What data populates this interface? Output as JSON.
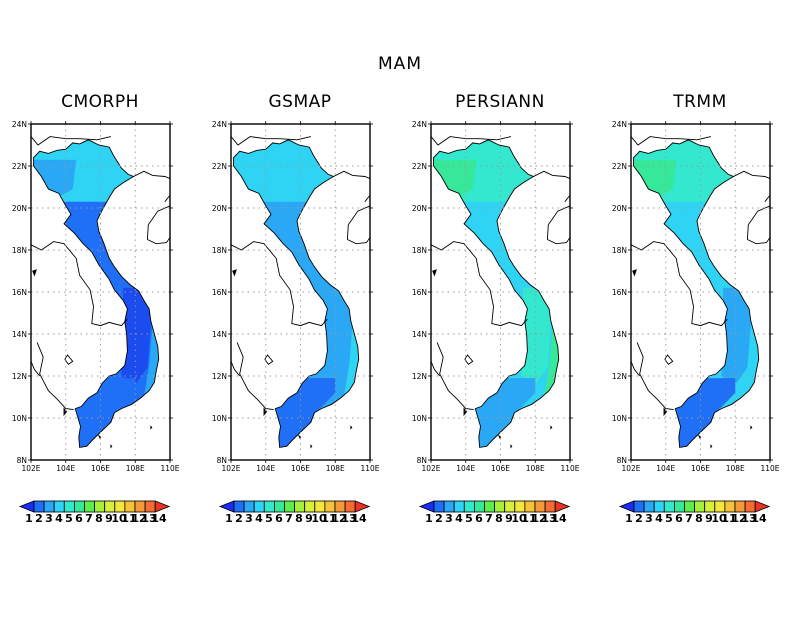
{
  "figure": {
    "title": "MAM"
  },
  "colors": {
    "scale": [
      "#1a2cf5",
      "#1f6ff7",
      "#2aa8f5",
      "#2fd4f4",
      "#33e8cf",
      "#36e89a",
      "#5cee4c",
      "#a8ef3a",
      "#d9f03a",
      "#f2e73a",
      "#f5c23a",
      "#f49a38",
      "#f26b30",
      "#ea3424"
    ],
    "land_outline": "#000000",
    "grid": "#999999"
  },
  "axes": {
    "lat_ticks": [
      "24N",
      "22N",
      "20N",
      "18N",
      "16N",
      "14N",
      "12N",
      "10N",
      "8N"
    ],
    "lon_ticks": [
      "102E",
      "104E",
      "106E",
      "108E",
      "110E"
    ]
  },
  "colorbar": {
    "labels": [
      "1",
      "2",
      "3",
      "4",
      "5",
      "6",
      "7",
      "8",
      "9",
      "10",
      "11",
      "12",
      "13",
      "14"
    ]
  },
  "panels": [
    {
      "title": "CMORPH",
      "palette": {
        "north": "#2fd4f4",
        "northwest": "#2aa8f5",
        "central": "#1f6ff7",
        "highlands": "#1a4cf0",
        "coast": "#2aa8f5",
        "south": "#1f6ff7"
      }
    },
    {
      "title": "GSMAP",
      "palette": {
        "north": "#2fd4f4",
        "northwest": "#2fd4f4",
        "central": "#2aa8f5",
        "highlands": "#2aa8f5",
        "coast": "#2fd4f4",
        "south": "#1f6ff7"
      }
    },
    {
      "title": "PERSIANN",
      "palette": {
        "north": "#33e8cf",
        "northwest": "#36e89a",
        "central": "#2fd4f4",
        "highlands": "#33e8cf",
        "coast": "#36e89a",
        "south": "#2aa8f5"
      }
    },
    {
      "title": "TRMM",
      "palette": {
        "north": "#33e8cf",
        "northwest": "#36e89a",
        "central": "#2fd4f4",
        "highlands": "#2aa8f5",
        "coast": "#2fd4f4",
        "south": "#1f6ff7"
      }
    }
  ]
}
